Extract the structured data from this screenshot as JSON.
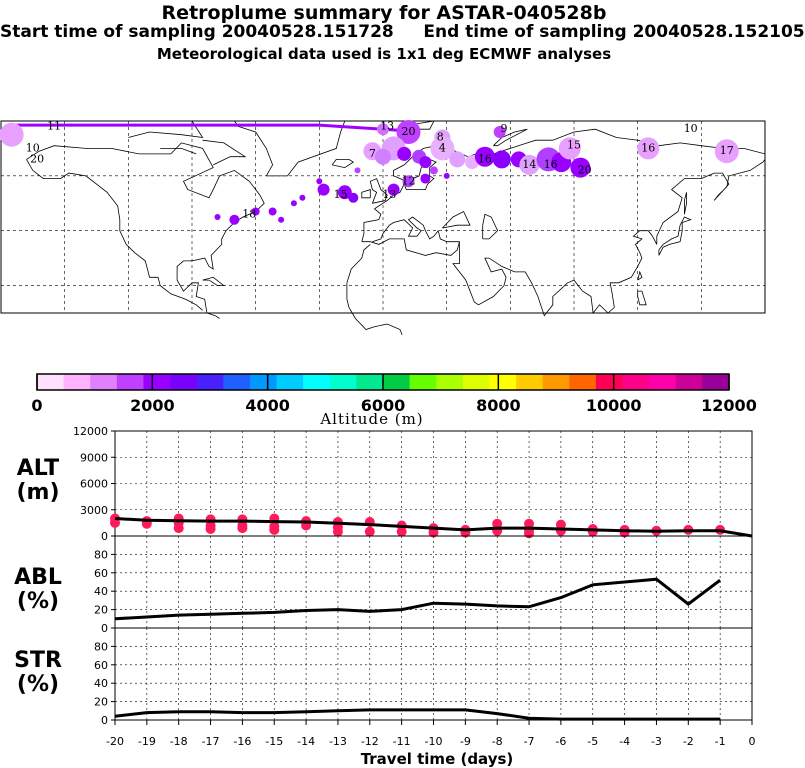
{
  "header": {
    "title": "Retroplume summary for ASTAR-040528b",
    "sampling_line": "Start time of sampling 20040528.151728     End time of sampling 20040528.152105",
    "met_line": "Meteorological data used is 1x1 deg ECMWF analyses"
  },
  "colors": {
    "palette": [
      "#ffe0ff",
      "#ffb3ff",
      "#e080ff",
      "#c040ff",
      "#9900ff",
      "#7a00ff",
      "#4a20ff",
      "#2060ff",
      "#0099ff",
      "#00ccff",
      "#00ffff",
      "#00ffcc",
      "#00e890",
      "#00cc44",
      "#66ff00",
      "#aaff00",
      "#ddff00",
      "#ffff00",
      "#ffcc00",
      "#ff9900",
      "#ff6600",
      "#ff0055",
      "#ff0088",
      "#ff00aa",
      "#cc0099",
      "#990099"
    ],
    "points": "#ff1a5a",
    "line": "#000000",
    "trajectory": "#9900ff"
  },
  "colorbar": {
    "ticks": [
      "0",
      "2000",
      "4000",
      "6000",
      "8000",
      "10000",
      "12000"
    ],
    "title": "Altitude (m)"
  },
  "map_labels": [
    {
      "text": "11",
      "lon": -155,
      "lat": 78
    },
    {
      "text": "10",
      "lon": -165,
      "lat": 70
    },
    {
      "text": "20",
      "lon": -163,
      "lat": 66
    },
    {
      "text": "13",
      "lon": 2,
      "lat": 78
    },
    {
      "text": "20",
      "lon": 12,
      "lat": 76
    },
    {
      "text": "8",
      "lon": 27,
      "lat": 74
    },
    {
      "text": "9",
      "lon": 57,
      "lat": 77
    },
    {
      "text": "4",
      "lon": 28,
      "lat": 70
    },
    {
      "text": "7",
      "lon": -5,
      "lat": 68
    },
    {
      "text": "16",
      "lon": 48,
      "lat": 66
    },
    {
      "text": "15",
      "lon": 90,
      "lat": 71
    },
    {
      "text": "14",
      "lon": 69,
      "lat": 64
    },
    {
      "text": "16",
      "lon": 79,
      "lat": 64
    },
    {
      "text": "16",
      "lon": 125,
      "lat": 70
    },
    {
      "text": "10",
      "lon": 145,
      "lat": 77
    },
    {
      "text": "17",
      "lon": 162,
      "lat": 69
    },
    {
      "text": "20",
      "lon": 95,
      "lat": 62
    },
    {
      "text": "12",
      "lon": 12,
      "lat": 58
    },
    {
      "text": "13",
      "lon": 3,
      "lat": 53
    },
    {
      "text": "15",
      "lon": -20,
      "lat": 53
    },
    {
      "text": "18",
      "lon": -63,
      "lat": 46
    }
  ],
  "chart_data": [
    {
      "type": "scatter",
      "name": "ALT",
      "ylabel": "ALT (m)",
      "x": [
        -20,
        -19,
        -18,
        -17,
        -16,
        -15,
        -14,
        -13,
        -12,
        -11,
        -10,
        -9,
        -8,
        -7,
        -6,
        -5,
        -4,
        -3,
        -2,
        -1,
        0
      ],
      "ylim": [
        0,
        12000
      ],
      "yticks": [
        0,
        3000,
        6000,
        9000,
        12000
      ],
      "series": [
        {
          "name": "mean altitude",
          "style": "line",
          "values": [
            2000,
            1800,
            1750,
            1700,
            1700,
            1650,
            1600,
            1450,
            1300,
            1100,
            900,
            700,
            900,
            900,
            800,
            700,
            600,
            550,
            600,
            600,
            0
          ]
        },
        {
          "name": "cluster altitudes",
          "style": "points",
          "values": [
            [
              -20,
              2000
            ],
            [
              -20,
              1500
            ],
            [
              -19,
              1700
            ],
            [
              -19,
              1400
            ],
            [
              -18,
              2000
            ],
            [
              -18,
              1500
            ],
            [
              -18,
              900
            ],
            [
              -17,
              1900
            ],
            [
              -17,
              1200
            ],
            [
              -17,
              800
            ],
            [
              -16,
              1900
            ],
            [
              -16,
              1200
            ],
            [
              -16,
              900
            ],
            [
              -15,
              2000
            ],
            [
              -15,
              1100
            ],
            [
              -15,
              700
            ],
            [
              -14,
              1700
            ],
            [
              -14,
              1200
            ],
            [
              -13,
              1600
            ],
            [
              -13,
              1000
            ],
            [
              -13,
              500
            ],
            [
              -12,
              1600
            ],
            [
              -12,
              500
            ],
            [
              -11,
              1200
            ],
            [
              -11,
              500
            ],
            [
              -10,
              900
            ],
            [
              -10,
              400
            ],
            [
              -9,
              700
            ],
            [
              -9,
              400
            ],
            [
              -8,
              1400
            ],
            [
              -8,
              600
            ],
            [
              -7,
              1400
            ],
            [
              -7,
              700
            ],
            [
              -7,
              300
            ],
            [
              -6,
              1300
            ],
            [
              -6,
              600
            ],
            [
              -5,
              800
            ],
            [
              -5,
              500
            ],
            [
              -4,
              700
            ],
            [
              -4,
              400
            ],
            [
              -3,
              600
            ],
            [
              -2,
              700
            ],
            [
              -1,
              700
            ]
          ]
        }
      ]
    },
    {
      "type": "line",
      "name": "ABL",
      "ylabel": "ABL (%)",
      "x": [
        -20,
        -19,
        -18,
        -17,
        -16,
        -15,
        -14,
        -13,
        -12,
        -11,
        -10,
        -9,
        -8,
        -7,
        -6,
        -5,
        -4,
        -3,
        -2,
        -1
      ],
      "values": [
        10,
        12,
        14,
        15,
        16,
        17,
        19,
        20,
        18,
        20,
        27,
        26,
        24,
        23,
        33,
        47,
        50,
        53,
        26,
        52
      ],
      "ylim": [
        0,
        100
      ],
      "yticks": [
        0,
        20,
        40,
        60,
        80
      ]
    },
    {
      "type": "line",
      "name": "STR",
      "ylabel": "STR (%)",
      "x": [
        -20,
        -19,
        -18,
        -17,
        -16,
        -15,
        -14,
        -13,
        -12,
        -11,
        -10,
        -9,
        -8,
        -7,
        -6,
        -5,
        -4,
        -3,
        -2,
        -1
      ],
      "values": [
        4,
        8,
        9,
        9,
        8,
        8,
        9,
        10,
        11,
        11,
        11,
        11,
        7,
        2,
        1,
        1,
        1,
        1,
        1,
        1
      ],
      "ylim": [
        0,
        100
      ],
      "yticks": [
        0,
        20,
        40,
        60,
        80
      ]
    }
  ],
  "labels": {
    "alt_top": "ALT",
    "alt_bot": "(m)",
    "abl_top": "ABL",
    "abl_bot": "(%)",
    "str_top": "STR",
    "str_bot": "(%)",
    "xlabel": "Travel time (days)",
    "xticks": [
      "-20",
      "-19",
      "-18",
      "-17",
      "-16",
      "-15",
      "-14",
      "-13",
      "-12",
      "-11",
      "-10",
      "-9",
      "-8",
      "-7",
      "-6",
      "-5",
      "-4",
      "-3",
      "-2",
      "-1",
      "0"
    ]
  }
}
